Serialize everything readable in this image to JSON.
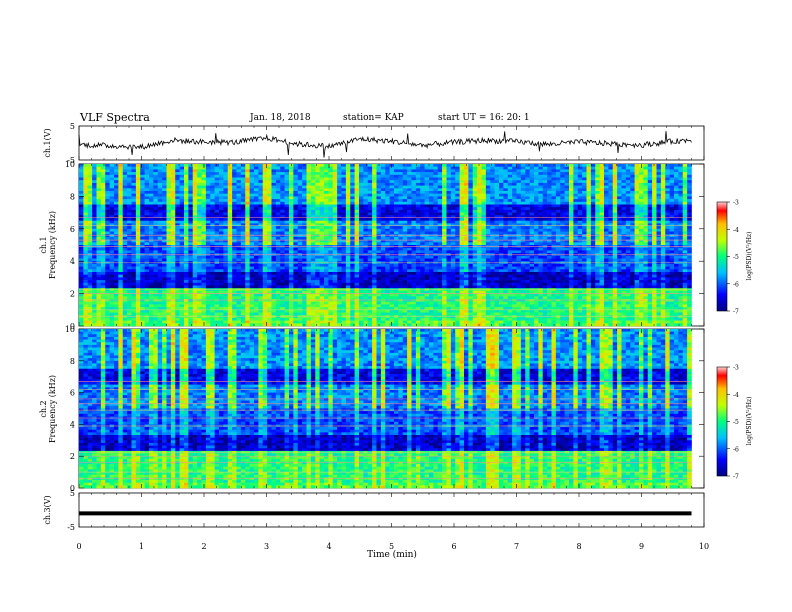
{
  "header": {
    "title": "VLF Spectra",
    "date": "Jan. 18, 2018",
    "station": "station= KAP",
    "start": "start UT =  16: 20: 1"
  },
  "chart_data": [
    {
      "type": "line",
      "panel": "ch1-voltage",
      "ylabel": "ch.1(V)",
      "ylim": [
        -5,
        5
      ],
      "yticks": [
        "5",
        "-5"
      ],
      "xlim": [
        0,
        10
      ],
      "description_of_series": "noisy waveform around 0 V, amplitude roughly 1-2 V",
      "x": [
        0,
        0.5,
        1,
        1.5,
        2,
        2.5,
        3,
        3.5,
        4,
        4.5,
        5,
        5.5,
        6,
        6.5,
        7,
        7.5,
        8,
        8.5,
        9,
        9.5,
        9.8
      ],
      "y": [
        -0.5,
        -0.8,
        -1.2,
        0.8,
        0.3,
        0.2,
        1.5,
        -0.3,
        -1.0,
        1.2,
        0.5,
        -0.7,
        0.2,
        0.8,
        0.4,
        -0.4,
        0.3,
        -0.2,
        -0.6,
        0.5,
        0.9
      ]
    },
    {
      "type": "heatmap",
      "panel": "ch1-spectrogram",
      "ylabel": "ch.1\nFrequency (kHz)",
      "ylim": [
        0,
        10
      ],
      "yticks": [
        "0",
        "2",
        "4",
        "6",
        "8",
        "10"
      ],
      "xlim": [
        0,
        9.8
      ],
      "colorbar": {
        "label": "log(PSD)(V²/Hz)",
        "ticks": [
          "-3",
          "-4",
          "-5",
          "-6",
          "-7"
        ],
        "range": [
          -7,
          -3
        ]
      }
    },
    {
      "type": "heatmap",
      "panel": "ch2-spectrogram",
      "ylabel": "ch.2\nFrequency (kHz)",
      "ylim": [
        0,
        10
      ],
      "yticks": [
        "0",
        "2",
        "4",
        "6",
        "8",
        "10"
      ],
      "xlim": [
        0,
        9.8
      ],
      "colorbar": {
        "label": "log(PSD)(V²/Hz)",
        "ticks": [
          "-3",
          "-4",
          "-5",
          "-6",
          "-7"
        ],
        "range": [
          -7,
          -3
        ]
      }
    },
    {
      "type": "line",
      "panel": "ch3-voltage",
      "ylabel": "ch.3(V)",
      "ylim": [
        -5,
        5
      ],
      "yticks": [
        "5",
        "-5"
      ],
      "xlim": [
        0,
        10
      ],
      "x": [
        0,
        9.8
      ],
      "y": [
        -1,
        -1
      ]
    }
  ],
  "xaxis": {
    "label": "Time (min)",
    "ticks": [
      "0",
      "1",
      "2",
      "3",
      "4",
      "5",
      "6",
      "7",
      "8",
      "9",
      "10"
    ]
  },
  "colors": {
    "low": "#00007f",
    "mid": "#00ffff",
    "high": "#ff0000"
  }
}
